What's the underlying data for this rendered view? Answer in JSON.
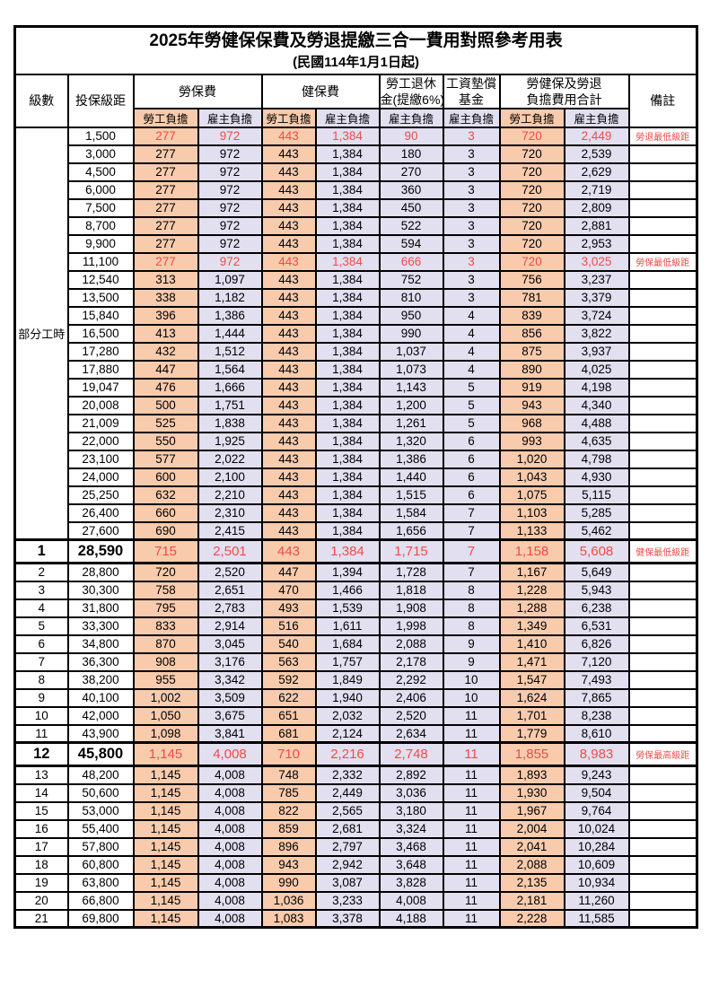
{
  "title": "2025年勞健保保費及勞退提繳三合一費用對照參考用表",
  "subtitle": "(民國114年1月1日起)",
  "columns": {
    "level": "級數",
    "bracket": "投保級距",
    "labor_insurance": "勞保費",
    "health_insurance": "健保費",
    "pension_line1": "勞工退休",
    "pension_line2": "金(提繳6%)",
    "wage_fund_line1": "工資墊償",
    "wage_fund_line2": "基金",
    "total_line1": "勞健保及勞退",
    "total_line2": "負擔費用合計",
    "remark": "備註",
    "employee_share": "勞工負擔",
    "employer_share": "雇主負擔"
  },
  "part_time_label": "部分工時",
  "colors": {
    "employee_column_bg": "#F8CBAD",
    "employer_column_bg": "#E2DFF0",
    "highlight_text": "#F04B47",
    "border": "#000000"
  },
  "rows": [
    {
      "level": "",
      "bracket": "1,500",
      "values": [
        "277",
        "972",
        "443",
        "1,384",
        "90",
        "3",
        "720",
        "2,449"
      ],
      "remark": "勞退最低級距",
      "highlight": true,
      "emphasis": false
    },
    {
      "level": "",
      "bracket": "3,000",
      "values": [
        "277",
        "972",
        "443",
        "1,384",
        "180",
        "3",
        "720",
        "2,539"
      ],
      "remark": "",
      "highlight": false,
      "emphasis": false
    },
    {
      "level": "",
      "bracket": "4,500",
      "values": [
        "277",
        "972",
        "443",
        "1,384",
        "270",
        "3",
        "720",
        "2,629"
      ],
      "remark": "",
      "highlight": false,
      "emphasis": false
    },
    {
      "level": "",
      "bracket": "6,000",
      "values": [
        "277",
        "972",
        "443",
        "1,384",
        "360",
        "3",
        "720",
        "2,719"
      ],
      "remark": "",
      "highlight": false,
      "emphasis": false
    },
    {
      "level": "",
      "bracket": "7,500",
      "values": [
        "277",
        "972",
        "443",
        "1,384",
        "450",
        "3",
        "720",
        "2,809"
      ],
      "remark": "",
      "highlight": false,
      "emphasis": false
    },
    {
      "level": "",
      "bracket": "8,700",
      "values": [
        "277",
        "972",
        "443",
        "1,384",
        "522",
        "3",
        "720",
        "2,881"
      ],
      "remark": "",
      "highlight": false,
      "emphasis": false
    },
    {
      "level": "",
      "bracket": "9,900",
      "values": [
        "277",
        "972",
        "443",
        "1,384",
        "594",
        "3",
        "720",
        "2,953"
      ],
      "remark": "",
      "highlight": false,
      "emphasis": false
    },
    {
      "level": "",
      "bracket": "11,100",
      "values": [
        "277",
        "972",
        "443",
        "1,384",
        "666",
        "3",
        "720",
        "3,025"
      ],
      "remark": "勞保最低級距",
      "highlight": true,
      "emphasis": false
    },
    {
      "level": "",
      "bracket": "12,540",
      "values": [
        "313",
        "1,097",
        "443",
        "1,384",
        "752",
        "3",
        "756",
        "3,237"
      ],
      "remark": "",
      "highlight": false,
      "emphasis": false
    },
    {
      "level": "",
      "bracket": "13,500",
      "values": [
        "338",
        "1,182",
        "443",
        "1,384",
        "810",
        "3",
        "781",
        "3,379"
      ],
      "remark": "",
      "highlight": false,
      "emphasis": false
    },
    {
      "level": "",
      "bracket": "15,840",
      "values": [
        "396",
        "1,386",
        "443",
        "1,384",
        "950",
        "4",
        "839",
        "3,724"
      ],
      "remark": "",
      "highlight": false,
      "emphasis": false
    },
    {
      "level": "",
      "bracket": "16,500",
      "values": [
        "413",
        "1,444",
        "443",
        "1,384",
        "990",
        "4",
        "856",
        "3,822"
      ],
      "remark": "",
      "highlight": false,
      "emphasis": false
    },
    {
      "level": "",
      "bracket": "17,280",
      "values": [
        "432",
        "1,512",
        "443",
        "1,384",
        "1,037",
        "4",
        "875",
        "3,937"
      ],
      "remark": "",
      "highlight": false,
      "emphasis": false
    },
    {
      "level": "",
      "bracket": "17,880",
      "values": [
        "447",
        "1,564",
        "443",
        "1,384",
        "1,073",
        "4",
        "890",
        "4,025"
      ],
      "remark": "",
      "highlight": false,
      "emphasis": false
    },
    {
      "level": "",
      "bracket": "19,047",
      "values": [
        "476",
        "1,666",
        "443",
        "1,384",
        "1,143",
        "5",
        "919",
        "4,198"
      ],
      "remark": "",
      "highlight": false,
      "emphasis": false
    },
    {
      "level": "",
      "bracket": "20,008",
      "values": [
        "500",
        "1,751",
        "443",
        "1,384",
        "1,200",
        "5",
        "943",
        "4,340"
      ],
      "remark": "",
      "highlight": false,
      "emphasis": false
    },
    {
      "level": "",
      "bracket": "21,009",
      "values": [
        "525",
        "1,838",
        "443",
        "1,384",
        "1,261",
        "5",
        "968",
        "4,488"
      ],
      "remark": "",
      "highlight": false,
      "emphasis": false
    },
    {
      "level": "",
      "bracket": "22,000",
      "values": [
        "550",
        "1,925",
        "443",
        "1,384",
        "1,320",
        "6",
        "993",
        "4,635"
      ],
      "remark": "",
      "highlight": false,
      "emphasis": false
    },
    {
      "level": "",
      "bracket": "23,100",
      "values": [
        "577",
        "2,022",
        "443",
        "1,384",
        "1,386",
        "6",
        "1,020",
        "4,798"
      ],
      "remark": "",
      "highlight": false,
      "emphasis": false
    },
    {
      "level": "",
      "bracket": "24,000",
      "values": [
        "600",
        "2,100",
        "443",
        "1,384",
        "1,440",
        "6",
        "1,043",
        "4,930"
      ],
      "remark": "",
      "highlight": false,
      "emphasis": false
    },
    {
      "level": "",
      "bracket": "25,250",
      "values": [
        "632",
        "2,210",
        "443",
        "1,384",
        "1,515",
        "6",
        "1,075",
        "5,115"
      ],
      "remark": "",
      "highlight": false,
      "emphasis": false
    },
    {
      "level": "",
      "bracket": "26,400",
      "values": [
        "660",
        "2,310",
        "443",
        "1,384",
        "1,584",
        "7",
        "1,103",
        "5,285"
      ],
      "remark": "",
      "highlight": false,
      "emphasis": false
    },
    {
      "level": "",
      "bracket": "27,600",
      "values": [
        "690",
        "2,415",
        "443",
        "1,384",
        "1,656",
        "7",
        "1,133",
        "5,462"
      ],
      "remark": "",
      "highlight": false,
      "emphasis": false
    },
    {
      "level": "1",
      "bracket": "28,590",
      "values": [
        "715",
        "2,501",
        "443",
        "1,384",
        "1,715",
        "7",
        "1,158",
        "5,608"
      ],
      "remark": "健保最低級距",
      "highlight": true,
      "emphasis": true
    },
    {
      "level": "2",
      "bracket": "28,800",
      "values": [
        "720",
        "2,520",
        "447",
        "1,394",
        "1,728",
        "7",
        "1,167",
        "5,649"
      ],
      "remark": "",
      "highlight": false,
      "emphasis": false
    },
    {
      "level": "3",
      "bracket": "30,300",
      "values": [
        "758",
        "2,651",
        "470",
        "1,466",
        "1,818",
        "8",
        "1,228",
        "5,943"
      ],
      "remark": "",
      "highlight": false,
      "emphasis": false
    },
    {
      "level": "4",
      "bracket": "31,800",
      "values": [
        "795",
        "2,783",
        "493",
        "1,539",
        "1,908",
        "8",
        "1,288",
        "6,238"
      ],
      "remark": "",
      "highlight": false,
      "emphasis": false
    },
    {
      "level": "5",
      "bracket": "33,300",
      "values": [
        "833",
        "2,914",
        "516",
        "1,611",
        "1,998",
        "8",
        "1,349",
        "6,531"
      ],
      "remark": "",
      "highlight": false,
      "emphasis": false
    },
    {
      "level": "6",
      "bracket": "34,800",
      "values": [
        "870",
        "3,045",
        "540",
        "1,684",
        "2,088",
        "9",
        "1,410",
        "6,826"
      ],
      "remark": "",
      "highlight": false,
      "emphasis": false
    },
    {
      "level": "7",
      "bracket": "36,300",
      "values": [
        "908",
        "3,176",
        "563",
        "1,757",
        "2,178",
        "9",
        "1,471",
        "7,120"
      ],
      "remark": "",
      "highlight": false,
      "emphasis": false
    },
    {
      "level": "8",
      "bracket": "38,200",
      "values": [
        "955",
        "3,342",
        "592",
        "1,849",
        "2,292",
        "10",
        "1,547",
        "7,493"
      ],
      "remark": "",
      "highlight": false,
      "emphasis": false
    },
    {
      "level": "9",
      "bracket": "40,100",
      "values": [
        "1,002",
        "3,509",
        "622",
        "1,940",
        "2,406",
        "10",
        "1,624",
        "7,865"
      ],
      "remark": "",
      "highlight": false,
      "emphasis": false
    },
    {
      "level": "10",
      "bracket": "42,000",
      "values": [
        "1,050",
        "3,675",
        "651",
        "2,032",
        "2,520",
        "11",
        "1,701",
        "8,238"
      ],
      "remark": "",
      "highlight": false,
      "emphasis": false
    },
    {
      "level": "11",
      "bracket": "43,900",
      "values": [
        "1,098",
        "3,841",
        "681",
        "2,124",
        "2,634",
        "11",
        "1,779",
        "8,610"
      ],
      "remark": "",
      "highlight": false,
      "emphasis": false
    },
    {
      "level": "12",
      "bracket": "45,800",
      "values": [
        "1,145",
        "4,008",
        "710",
        "2,216",
        "2,748",
        "11",
        "1,855",
        "8,983"
      ],
      "remark": "勞保最高級距",
      "highlight": true,
      "emphasis": true
    },
    {
      "level": "13",
      "bracket": "48,200",
      "values": [
        "1,145",
        "4,008",
        "748",
        "2,332",
        "2,892",
        "11",
        "1,893",
        "9,243"
      ],
      "remark": "",
      "highlight": false,
      "emphasis": false
    },
    {
      "level": "14",
      "bracket": "50,600",
      "values": [
        "1,145",
        "4,008",
        "785",
        "2,449",
        "3,036",
        "11",
        "1,930",
        "9,504"
      ],
      "remark": "",
      "highlight": false,
      "emphasis": false
    },
    {
      "level": "15",
      "bracket": "53,000",
      "values": [
        "1,145",
        "4,008",
        "822",
        "2,565",
        "3,180",
        "11",
        "1,967",
        "9,764"
      ],
      "remark": "",
      "highlight": false,
      "emphasis": false
    },
    {
      "level": "16",
      "bracket": "55,400",
      "values": [
        "1,145",
        "4,008",
        "859",
        "2,681",
        "3,324",
        "11",
        "2,004",
        "10,024"
      ],
      "remark": "",
      "highlight": false,
      "emphasis": false
    },
    {
      "level": "17",
      "bracket": "57,800",
      "values": [
        "1,145",
        "4,008",
        "896",
        "2,797",
        "3,468",
        "11",
        "2,041",
        "10,284"
      ],
      "remark": "",
      "highlight": false,
      "emphasis": false
    },
    {
      "level": "18",
      "bracket": "60,800",
      "values": [
        "1,145",
        "4,008",
        "943",
        "2,942",
        "3,648",
        "11",
        "2,088",
        "10,609"
      ],
      "remark": "",
      "highlight": false,
      "emphasis": false
    },
    {
      "level": "19",
      "bracket": "63,800",
      "values": [
        "1,145",
        "4,008",
        "990",
        "3,087",
        "3,828",
        "11",
        "2,135",
        "10,934"
      ],
      "remark": "",
      "highlight": false,
      "emphasis": false
    },
    {
      "level": "20",
      "bracket": "66,800",
      "values": [
        "1,145",
        "4,008",
        "1,036",
        "3,233",
        "4,008",
        "11",
        "2,181",
        "11,260"
      ],
      "remark": "",
      "highlight": false,
      "emphasis": false
    },
    {
      "level": "21",
      "bracket": "69,800",
      "values": [
        "1,145",
        "4,008",
        "1,083",
        "3,378",
        "4,188",
        "11",
        "2,228",
        "11,585"
      ],
      "remark": "",
      "highlight": false,
      "emphasis": false
    }
  ]
}
